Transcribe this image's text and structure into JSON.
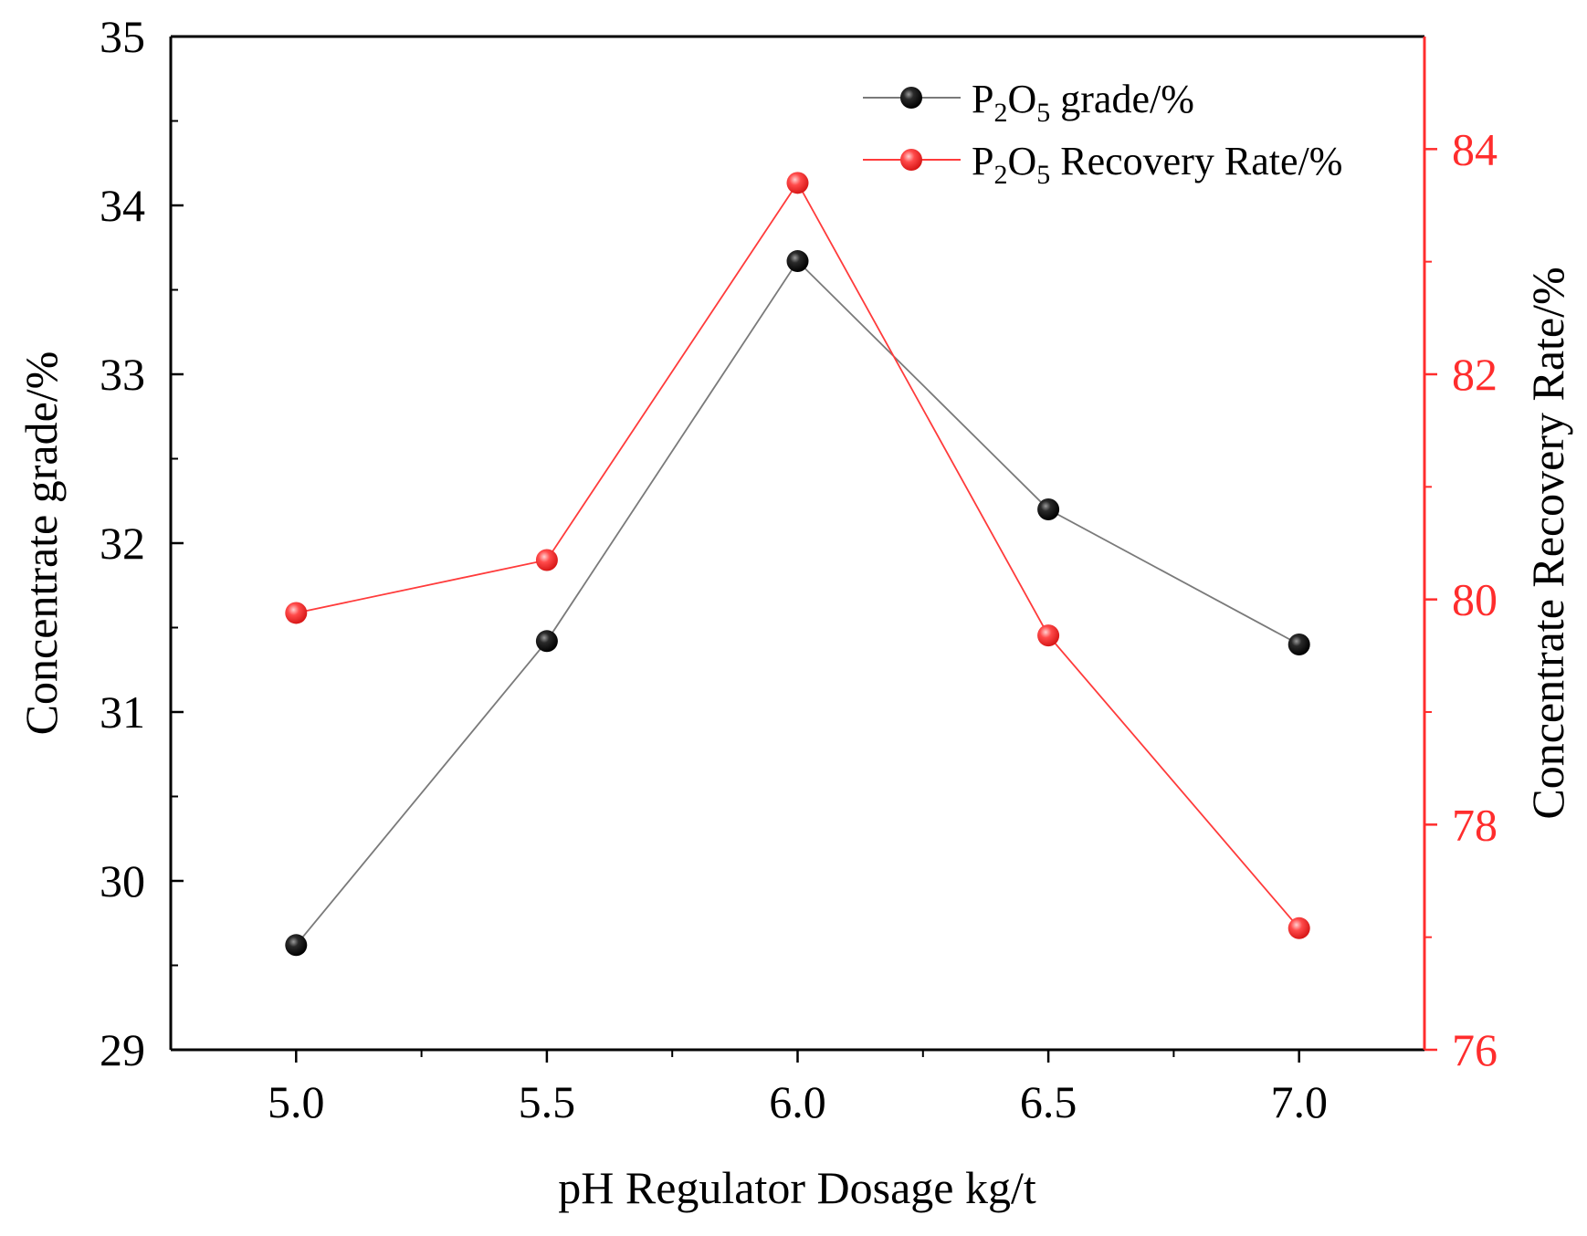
{
  "chart_data": {
    "type": "line",
    "xlabel": "pH Regulator Dosage kg/t",
    "ylabel_left": "Concentrate grade/%",
    "ylabel_right": "Concentrate Recovery Rate/%",
    "x": [
      5.0,
      5.5,
      6.0,
      6.5,
      7.0
    ],
    "xlim": [
      4.75,
      7.25
    ],
    "x_ticks": [
      "5.0",
      "5.5",
      "6.0",
      "6.5",
      "7.0"
    ],
    "ylim_left": [
      29,
      35
    ],
    "y_ticks_left": [
      "29",
      "30",
      "31",
      "32",
      "33",
      "34",
      "35"
    ],
    "ylim_right": [
      76,
      85
    ],
    "y_ticks_right": [
      "76",
      "78",
      "80",
      "82",
      "84"
    ],
    "series": [
      {
        "name": "P2O5 grade/%",
        "legend_main": "P",
        "legend_sub1": "2",
        "legend_mid": "O",
        "legend_sub2": "5",
        "legend_tail": " grade/%",
        "axis": "left",
        "color": "#000000",
        "line_color": "#7a7a7a",
        "values": [
          29.62,
          31.42,
          33.67,
          32.2,
          31.4
        ]
      },
      {
        "name": "P2O5 Recovery Rate/%",
        "legend_main": "P",
        "legend_sub1": "2",
        "legend_mid": "O",
        "legend_sub2": "5",
        "legend_tail": " Recovery Rate/%",
        "axis": "right",
        "color": "#ff2d2d",
        "line_color": "#ff3b3b",
        "values": [
          79.88,
          80.35,
          83.7,
          79.68,
          77.08
        ]
      }
    ],
    "legend_position": "top-right",
    "grid": false
  }
}
